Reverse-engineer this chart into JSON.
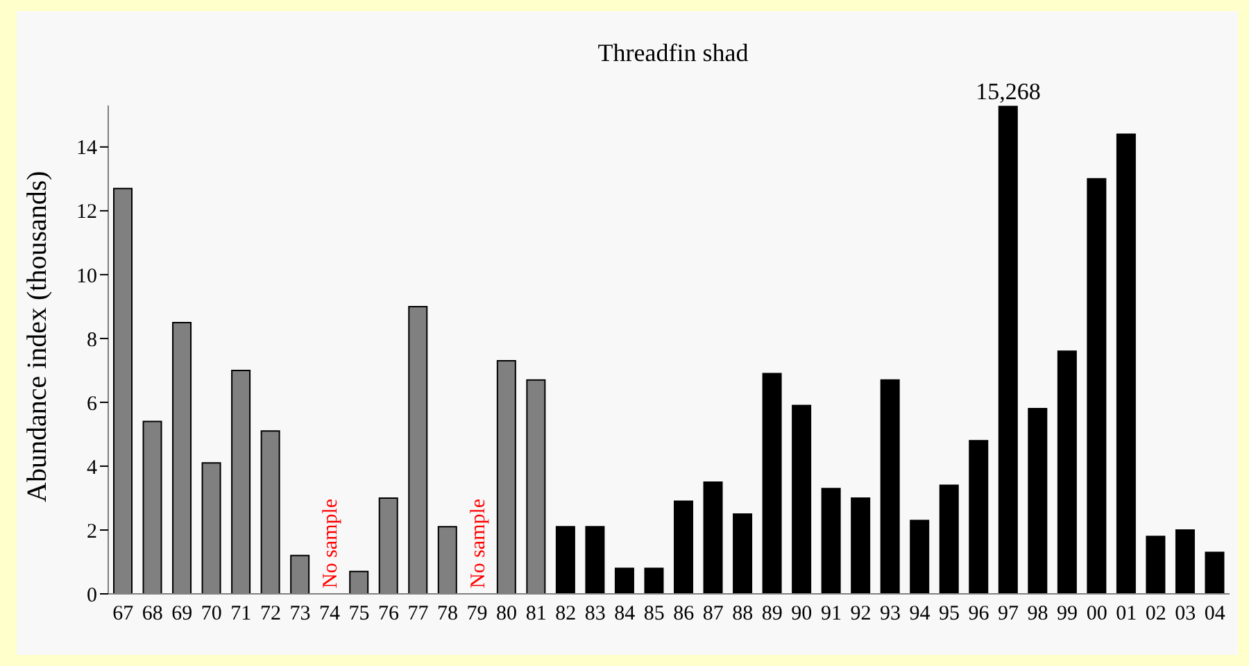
{
  "chart_data": {
    "type": "bar",
    "title": "Threadfin shad",
    "ylabel": "Abundance index (thousands)",
    "categories": [
      "67",
      "68",
      "69",
      "70",
      "71",
      "72",
      "73",
      "74",
      "75",
      "76",
      "77",
      "78",
      "79",
      "80",
      "81",
      "82",
      "83",
      "84",
      "85",
      "86",
      "87",
      "88",
      "89",
      "90",
      "91",
      "92",
      "93",
      "94",
      "95",
      "96",
      "97",
      "98",
      "99",
      "00",
      "01",
      "02",
      "03",
      "04"
    ],
    "values": [
      12.7,
      5.4,
      8.5,
      4.1,
      7.0,
      5.1,
      1.2,
      null,
      0.7,
      3.0,
      9.0,
      2.1,
      null,
      7.3,
      6.7,
      2.1,
      2.1,
      0.8,
      0.8,
      2.9,
      3.5,
      2.5,
      6.9,
      5.9,
      3.3,
      3.0,
      6.7,
      2.3,
      3.4,
      4.8,
      15.268,
      5.8,
      7.6,
      13.0,
      14.4,
      1.8,
      2.0,
      1.3
    ],
    "colors": [
      "#808080",
      "#808080",
      "#808080",
      "#808080",
      "#808080",
      "#808080",
      "#808080",
      "#808080",
      "#808080",
      "#808080",
      "#808080",
      "#808080",
      "#808080",
      "#808080",
      "#808080",
      "#000000",
      "#000000",
      "#000000",
      "#000000",
      "#000000",
      "#000000",
      "#000000",
      "#000000",
      "#000000",
      "#000000",
      "#000000",
      "#000000",
      "#000000",
      "#000000",
      "#000000",
      "#000000",
      "#000000",
      "#000000",
      "#000000",
      "#000000",
      "#000000",
      "#000000",
      "#000000"
    ],
    "ylim": [
      0,
      15.3
    ],
    "yticks": [
      0,
      2,
      4,
      6,
      8,
      10,
      12,
      14
    ],
    "grid": false,
    "legend": false,
    "annotations": [
      "15,268",
      "No sample",
      "No sample"
    ]
  }
}
